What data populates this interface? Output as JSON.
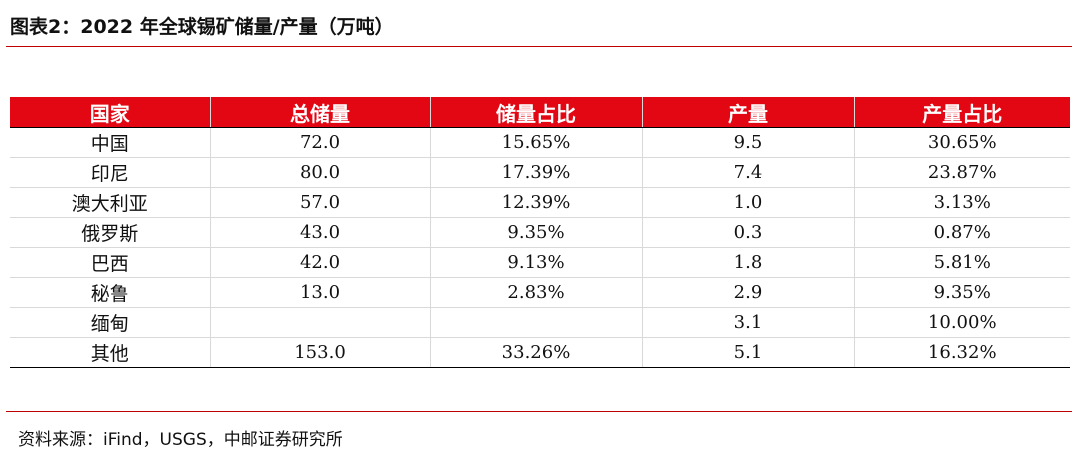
{
  "title": "图表2：2022 年全球锡矿储量/产量（万吨）",
  "columns": [
    "国家",
    "总储量",
    "储量占比",
    "产量",
    "产量占比"
  ],
  "rows": [
    [
      "中国",
      "72.0",
      "15.65%",
      "9.5",
      "30.65%"
    ],
    [
      "印尼",
      "80.0",
      "17.39%",
      "7.4",
      "23.87%"
    ],
    [
      "澳大利亚",
      "57.0",
      "12.39%",
      "1.0",
      "3.13%"
    ],
    [
      "俄罗斯",
      "43.0",
      "9.35%",
      "0.3",
      "0.87%"
    ],
    [
      "巴西",
      "42.0",
      "9.13%",
      "1.8",
      "5.81%"
    ],
    [
      "秘鲁",
      "13.0",
      "2.83%",
      "2.9",
      "9.35%"
    ],
    [
      "缅甸",
      "",
      "",
      "3.1",
      "10.00%"
    ],
    [
      "其他",
      "153.0",
      "33.26%",
      "5.1",
      "16.32%"
    ]
  ],
  "source": "资料来源：iFind，USGS，中邮证券研究所",
  "colors": {
    "accent": "#e30613",
    "rule": "#c00000",
    "grid": "#d9d9d9"
  }
}
